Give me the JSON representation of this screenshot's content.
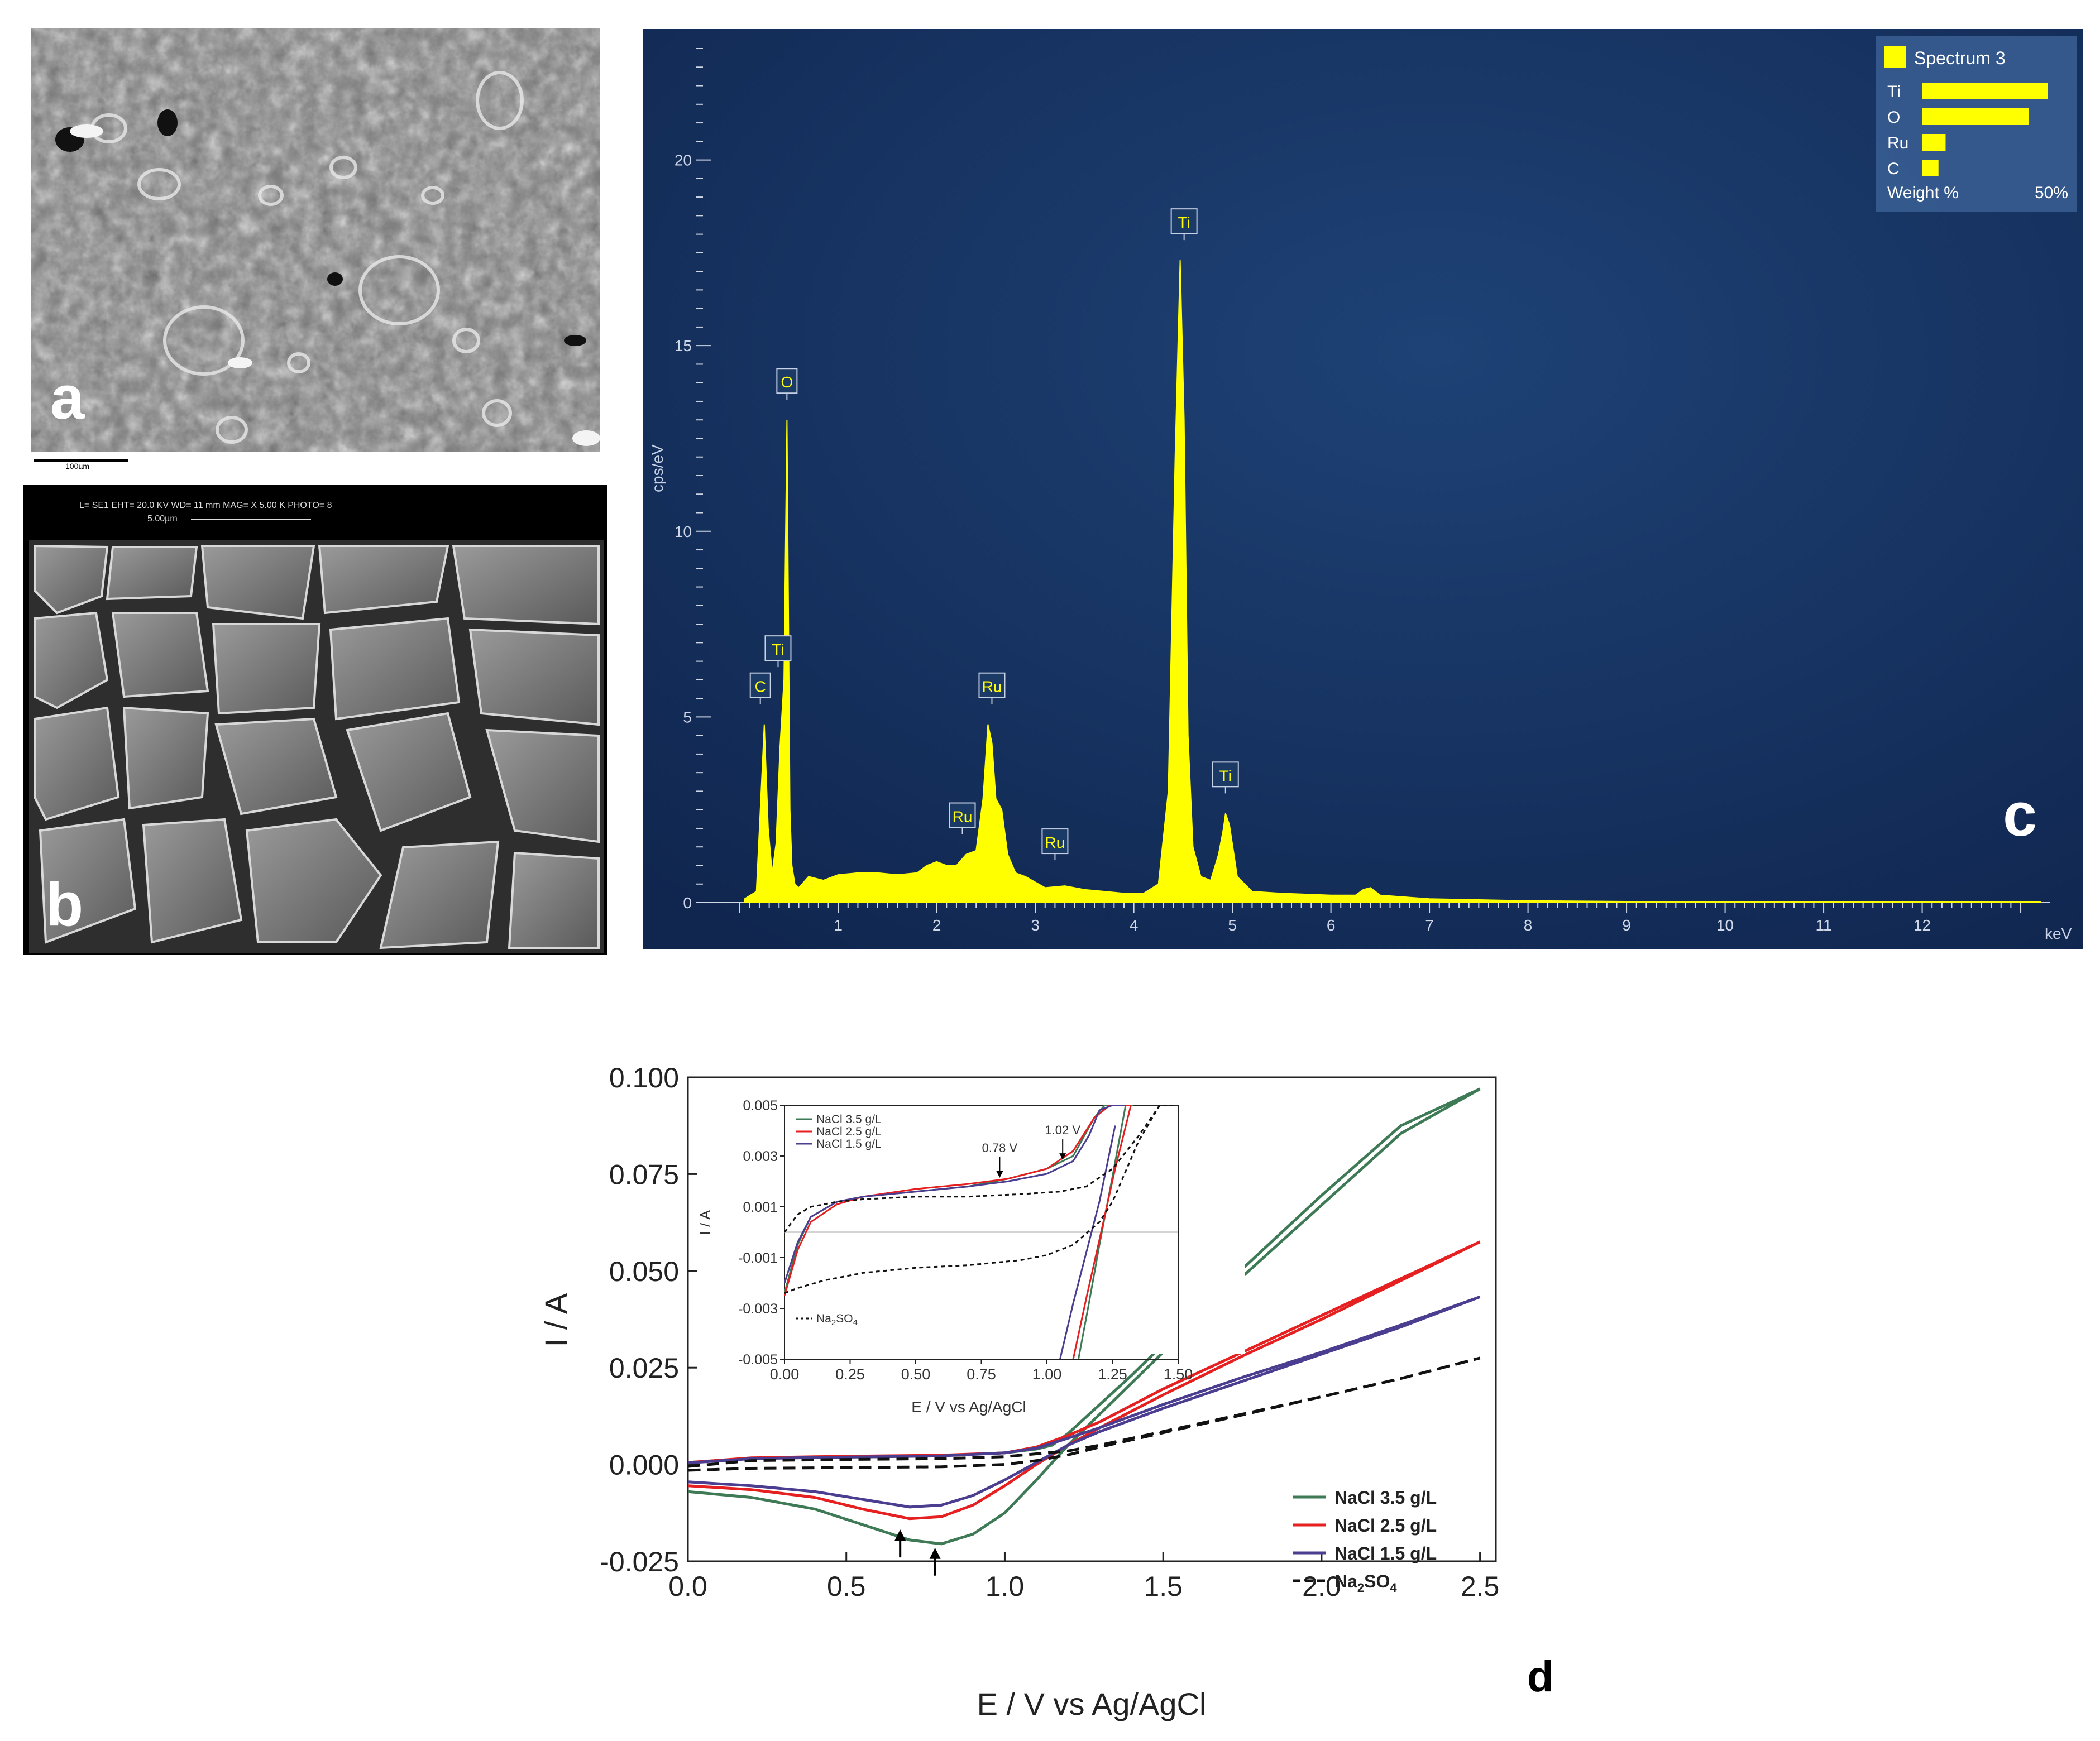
{
  "panels": {
    "a": {
      "letter": "a",
      "scale_bar": "100µm"
    },
    "b": {
      "letter": "b",
      "header": "L= SE1     EHT= 20.0 KV   WD= 11   mm      MAG= X 5.00 K  PHOTO= 8",
      "scale_bar": "5.00µm"
    },
    "c": {
      "letter": "c"
    },
    "d": {
      "letter": "d"
    }
  },
  "chart_data": [
    {
      "id": "c",
      "type": "area",
      "title": "",
      "xlabel": "",
      "ylabel": "cps/eV",
      "x_unit_label": "keV",
      "xlim": [
        -0.1,
        13.3
      ],
      "ylim": [
        0,
        23
      ],
      "x_ticks": [
        1,
        2,
        3,
        4,
        5,
        6,
        7,
        8,
        9,
        10,
        11,
        12
      ],
      "y_ticks": [
        0,
        5,
        10,
        15,
        20
      ],
      "series": [
        {
          "name": "Spectrum 3",
          "x": [
            0.05,
            0.17,
            0.21,
            0.25,
            0.29,
            0.33,
            0.37,
            0.41,
            0.45,
            0.48,
            0.51,
            0.53,
            0.56,
            0.6,
            0.7,
            0.85,
            1.0,
            1.2,
            1.4,
            1.6,
            1.8,
            1.9,
            2.0,
            2.1,
            2.2,
            2.3,
            2.4,
            2.47,
            2.52,
            2.56,
            2.6,
            2.66,
            2.72,
            2.8,
            2.9,
            3.1,
            3.3,
            3.5,
            3.7,
            3.9,
            4.1,
            4.25,
            4.35,
            4.42,
            4.47,
            4.51,
            4.55,
            4.6,
            4.68,
            4.78,
            4.86,
            4.91,
            4.93,
            4.97,
            5.05,
            5.2,
            5.5,
            6.0,
            6.25,
            6.33,
            6.4,
            6.5,
            7.0,
            8.0,
            9.0,
            10.0,
            11.0,
            12.0,
            13.2
          ],
          "values": [
            0.1,
            0.3,
            2.5,
            4.8,
            2.0,
            0.8,
            1.6,
            4.2,
            6.0,
            13.0,
            2.5,
            1.0,
            0.5,
            0.4,
            0.7,
            0.6,
            0.75,
            0.8,
            0.8,
            0.75,
            0.8,
            1.0,
            1.1,
            1.0,
            1.0,
            1.3,
            1.4,
            2.8,
            4.8,
            4.3,
            2.8,
            2.5,
            1.3,
            0.8,
            0.7,
            0.4,
            0.45,
            0.35,
            0.3,
            0.25,
            0.25,
            0.5,
            3.0,
            12.0,
            17.3,
            13.0,
            4.5,
            1.5,
            0.7,
            0.6,
            1.3,
            2.0,
            2.4,
            2.1,
            0.7,
            0.3,
            0.25,
            0.2,
            0.2,
            0.35,
            0.4,
            0.2,
            0.1,
            0.05,
            0.03,
            0.02,
            0.02,
            0.02,
            0.02
          ],
          "color": "#ffff00"
        }
      ],
      "peak_labels": [
        {
          "label": "C",
          "x": 0.21,
          "y": 4.8
        },
        {
          "label": "Ti",
          "x": 0.39,
          "y": 5.8
        },
        {
          "label": "O",
          "x": 0.48,
          "y": 13.0
        },
        {
          "label": "Ru",
          "x": 2.26,
          "y": 1.3
        },
        {
          "label": "Ru",
          "x": 2.56,
          "y": 4.8
        },
        {
          "label": "Ru",
          "x": 3.2,
          "y": 0.6
        },
        {
          "label": "Ti",
          "x": 4.51,
          "y": 17.3
        },
        {
          "label": "Ti",
          "x": 4.93,
          "y": 2.4
        }
      ],
      "legend": {
        "title": "Spectrum 3",
        "position": "top-right",
        "footer_left": "Weight %",
        "footer_right": "50%",
        "items": [
          {
            "label": "Ti",
            "value": 53
          },
          {
            "label": "O",
            "value": 45
          },
          {
            "label": "Ru",
            "value": 10
          },
          {
            "label": "C",
            "value": 7
          }
        ]
      },
      "colors": {
        "background": "#142f5e",
        "trace": "#ffff00",
        "axis": "#d0d8e8"
      }
    },
    {
      "id": "d",
      "type": "line",
      "title": "",
      "xlabel": "E / V vs Ag/AgCl",
      "ylabel": "I / A",
      "xlim": [
        0,
        2.55
      ],
      "ylim": [
        -0.025,
        0.1
      ],
      "x_ticks": [
        "0.0",
        "0.5",
        "1.0",
        "1.5",
        "2.0",
        "2.5"
      ],
      "y_ticks": [
        "-0.025",
        "0.000",
        "0.025",
        "0.050",
        "0.075",
        "0.100"
      ],
      "legend_position": "bottom-right",
      "series": [
        {
          "name": "NaCl 3.5 g/L",
          "color": "#3d7a55",
          "dash": "solid",
          "forward": {
            "x": [
              0.0,
              0.2,
              0.4,
              0.6,
              0.8,
              1.0,
              1.1,
              1.15,
              1.2,
              1.3,
              1.4,
              1.5,
              1.75,
              2.0,
              2.25,
              2.5
            ],
            "y": [
              0.0005,
              0.0016,
              0.0018,
              0.002,
              0.0023,
              0.003,
              0.004,
              0.005,
              0.008,
              0.0155,
              0.023,
              0.031,
              0.0505,
              0.0695,
              0.0875,
              0.097
            ]
          },
          "reverse": {
            "x": [
              2.5,
              2.25,
              2.0,
              1.75,
              1.5,
              1.4,
              1.3,
              1.2,
              1.1,
              1.0,
              0.9,
              0.8,
              0.7,
              0.55,
              0.4,
              0.2,
              0.0
            ],
            "y": [
              0.097,
              0.0855,
              0.067,
              0.0485,
              0.029,
              0.021,
              0.013,
              0.005,
              -0.004,
              -0.0125,
              -0.018,
              -0.0205,
              -0.0195,
              -0.0155,
              -0.0115,
              -0.0085,
              -0.007
            ]
          }
        },
        {
          "name": "NaCl 2.5 g/L",
          "color": "#e62020",
          "dash": "solid",
          "forward": {
            "x": [
              0.0,
              0.2,
              0.4,
              0.6,
              0.8,
              1.0,
              1.1,
              1.2,
              1.3,
              1.5,
              1.75,
              2.0,
              2.25,
              2.5
            ],
            "y": [
              0.0005,
              0.0017,
              0.002,
              0.0022,
              0.0024,
              0.003,
              0.0045,
              0.0075,
              0.011,
              0.0195,
              0.029,
              0.0385,
              0.048,
              0.0575
            ]
          },
          "reverse": {
            "x": [
              2.5,
              2.25,
              2.0,
              1.75,
              1.5,
              1.3,
              1.2,
              1.1,
              1.0,
              0.9,
              0.8,
              0.7,
              0.55,
              0.4,
              0.2,
              0.0
            ],
            "y": [
              0.0575,
              0.0475,
              0.0375,
              0.028,
              0.018,
              0.0095,
              0.005,
              0.0,
              -0.0055,
              -0.0105,
              -0.0135,
              -0.014,
              -0.0115,
              -0.0085,
              -0.0065,
              -0.0055
            ]
          }
        },
        {
          "name": "NaCl 1.5 g/L",
          "color": "#4b3d8f",
          "dash": "solid",
          "forward": {
            "x": [
              0.0,
              0.2,
              0.4,
              0.6,
              0.8,
              1.0,
              1.1,
              1.2,
              1.3,
              1.5,
              1.75,
              2.0,
              2.25,
              2.5
            ],
            "y": [
              0.0004,
              0.0015,
              0.0018,
              0.002,
              0.0022,
              0.003,
              0.0042,
              0.0068,
              0.0095,
              0.0155,
              0.0225,
              0.029,
              0.036,
              0.0433
            ]
          },
          "reverse": {
            "x": [
              2.5,
              2.25,
              2.0,
              1.75,
              1.5,
              1.3,
              1.2,
              1.1,
              1.0,
              0.9,
              0.8,
              0.7,
              0.55,
              0.4,
              0.2,
              0.0
            ],
            "y": [
              0.0433,
              0.0355,
              0.0285,
              0.0215,
              0.0145,
              0.0085,
              0.005,
              0.0005,
              -0.004,
              -0.008,
              -0.0105,
              -0.011,
              -0.009,
              -0.007,
              -0.0055,
              -0.0045
            ]
          }
        },
        {
          "name": "Na2SO4",
          "color": "#111111",
          "dash": "dashed",
          "forward": {
            "x": [
              0.0,
              0.2,
              0.5,
              0.8,
              1.0,
              1.2,
              1.3,
              1.5,
              1.75,
              2.0,
              2.25,
              2.5
            ],
            "y": [
              -0.0005,
              0.001,
              0.0013,
              0.0015,
              0.002,
              0.0035,
              0.005,
              0.0085,
              0.013,
              0.0175,
              0.0222,
              0.0275
            ]
          },
          "reverse": {
            "x": [
              2.5,
              2.25,
              2.0,
              1.75,
              1.5,
              1.3,
              1.2,
              1.1,
              1.0,
              0.8,
              0.5,
              0.2,
              0.0
            ],
            "y": [
              0.0275,
              0.0222,
              0.0175,
              0.0128,
              0.0082,
              0.0045,
              0.0025,
              0.001,
              0.0,
              -0.0006,
              -0.0008,
              -0.001,
              -0.0015
            ]
          }
        }
      ],
      "arrows": [
        {
          "x": 0.67,
          "y": -0.0168
        },
        {
          "x": 0.78,
          "y": -0.0215
        }
      ],
      "legend_items": [
        {
          "label": "NaCl 3.5 g/L",
          "color": "#3d7a55",
          "dash": "solid"
        },
        {
          "label": "NaCl 2.5 g/L",
          "color": "#e62020",
          "dash": "solid"
        },
        {
          "label": "NaCl 1.5 g/L",
          "color": "#4b3d8f",
          "dash": "solid"
        },
        {
          "label": "Na",
          "sub": "2",
          "label2": "SO",
          "sub2": "4",
          "color": "#111111",
          "dash": "dashed"
        }
      ]
    },
    {
      "id": "d-inset",
      "type": "line",
      "title": "",
      "xlabel": "E / V vs Ag/AgCl",
      "ylabel": "I / A",
      "xlim": [
        0,
        1.5
      ],
      "ylim": [
        -0.005,
        0.005
      ],
      "x_ticks": [
        "0.00",
        "0.25",
        "0.50",
        "0.75",
        "1.00",
        "1.25",
        "1.50"
      ],
      "y_ticks": [
        "-0.005",
        "-0.003",
        "-0.001",
        "0.001",
        "0.003",
        "0.005"
      ],
      "annotations": [
        {
          "text": "0.78 V",
          "x": 0.82,
          "y": 0.0021
        },
        {
          "text": "1.02 V",
          "x": 1.06,
          "y": 0.0028
        }
      ],
      "legend_items": [
        {
          "label": "NaCl 3.5 g/L",
          "color": "#3d7a55",
          "dash": "solid"
        },
        {
          "label": "NaCl 2.5 g/L",
          "color": "#e62020",
          "dash": "solid"
        },
        {
          "label": "NaCl 1.5 g/L",
          "color": "#4b3d8f",
          "dash": "solid"
        }
      ],
      "legend_items_bottom": [
        {
          "label": "Na",
          "sub": "2",
          "label2": "SO",
          "sub2": "4",
          "color": "#111111",
          "dash": "dotted"
        }
      ],
      "series": [
        {
          "name": "NaCl 3.5 g/L",
          "color": "#3d7a55",
          "dash": "solid",
          "x": [
            0.0,
            0.05,
            0.1,
            0.2,
            0.3,
            0.5,
            0.7,
            0.85,
            1.0,
            1.1,
            1.18,
            1.22,
            1.26,
            1.3,
            1.33
          ],
          "y": [
            -0.0024,
            -0.0005,
            0.0006,
            0.0012,
            0.0014,
            0.0016,
            0.0018,
            0.0021,
            0.0025,
            0.003,
            0.0045,
            0.005,
            0.005,
            0.005,
            0.005
          ]
        },
        {
          "name": "NaCl 3.5 g/L return",
          "color": "#3d7a55",
          "dash": "solid",
          "x": [
            1.12,
            1.16,
            1.2,
            1.25,
            1.3
          ],
          "y": [
            -0.005,
            -0.0028,
            -0.0005,
            0.0022,
            0.005
          ]
        },
        {
          "name": "NaCl 2.5 g/L",
          "color": "#e62020",
          "dash": "solid",
          "x": [
            0.0,
            0.05,
            0.1,
            0.2,
            0.3,
            0.5,
            0.7,
            0.85,
            1.0,
            1.1,
            1.18,
            1.24,
            1.28,
            1.32
          ],
          "y": [
            -0.0025,
            -0.0007,
            0.0004,
            0.0011,
            0.0014,
            0.0017,
            0.0019,
            0.0021,
            0.0025,
            0.0032,
            0.0045,
            0.005,
            0.005,
            0.005
          ]
        },
        {
          "name": "NaCl 2.5 g/L return",
          "color": "#e62020",
          "dash": "solid",
          "x": [
            1.1,
            1.15,
            1.2,
            1.26,
            1.32
          ],
          "y": [
            -0.005,
            -0.0026,
            -0.0003,
            0.0025,
            0.005
          ]
        },
        {
          "name": "NaCl 1.5 g/L",
          "color": "#4b3d8f",
          "dash": "solid",
          "x": [
            0.0,
            0.05,
            0.1,
            0.2,
            0.3,
            0.5,
            0.7,
            0.85,
            1.0,
            1.1,
            1.16,
            1.2,
            1.25,
            1.3
          ],
          "y": [
            -0.002,
            -0.0004,
            0.0006,
            0.0012,
            0.0014,
            0.0016,
            0.0018,
            0.002,
            0.0023,
            0.0028,
            0.0038,
            0.0048,
            0.005,
            0.005
          ]
        },
        {
          "name": "NaCl 1.5 g/L return",
          "color": "#4b3d8f",
          "dash": "solid",
          "x": [
            1.05,
            1.1,
            1.15,
            1.2,
            1.26
          ],
          "y": [
            -0.005,
            -0.0028,
            -0.0008,
            0.0012,
            0.0042
          ]
        },
        {
          "name": "Na2SO4",
          "color": "#111111",
          "dash": "dotted",
          "x": [
            0.0,
            0.05,
            0.1,
            0.2,
            0.3,
            0.5,
            0.7,
            0.9,
            1.05,
            1.15,
            1.25,
            1.35,
            1.43,
            1.48
          ],
          "y": [
            0.0,
            0.0007,
            0.001,
            0.0012,
            0.0013,
            0.0014,
            0.0014,
            0.0015,
            0.0016,
            0.0018,
            0.0025,
            0.0038,
            0.005,
            0.005
          ]
        },
        {
          "name": "Na2SO4 return",
          "color": "#111111",
          "dash": "dotted",
          "x": [
            1.43,
            1.35,
            1.3,
            1.25,
            1.2,
            1.1,
            1.0,
            0.9,
            0.7,
            0.5,
            0.3,
            0.15,
            0.05,
            0.0
          ],
          "y": [
            0.005,
            0.0036,
            0.0024,
            0.0012,
            0.0004,
            -0.0005,
            -0.0009,
            -0.0011,
            -0.0013,
            -0.0014,
            -0.0016,
            -0.0019,
            -0.0022,
            -0.0024
          ]
        }
      ]
    }
  ]
}
